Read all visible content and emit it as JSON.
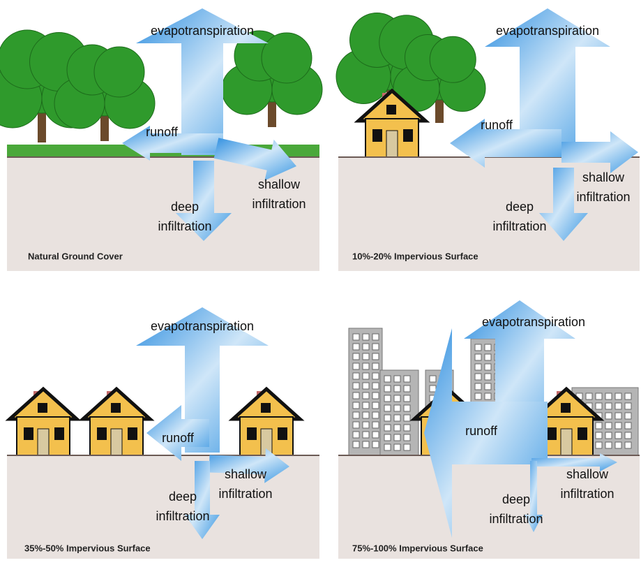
{
  "panels": [
    {
      "caption": "Natural Ground Cover",
      "evapotranspiration": "evapotranspiration",
      "runoff": "runoff",
      "shallow_infiltration": [
        "shallow",
        "infiltration"
      ],
      "deep_infiltration": [
        "deep",
        "infiltration"
      ]
    },
    {
      "caption": "10%-20% Impervious Surface",
      "evapotranspiration": "evapotranspiration",
      "runoff": "runoff",
      "shallow_infiltration": [
        "shallow",
        "infiltration"
      ],
      "deep_infiltration": [
        "deep",
        "infiltration"
      ]
    },
    {
      "caption": "35%-50% Impervious Surface",
      "evapotranspiration": "evapotranspiration",
      "runoff": "runoff",
      "shallow_infiltration": [
        "shallow",
        "infiltration"
      ],
      "deep_infiltration": [
        "deep",
        "infiltration"
      ]
    },
    {
      "caption": "75%-100% Impervious Surface",
      "evapotranspiration": "evapotranspiration",
      "runoff": "runoff",
      "shallow_infiltration": [
        "shallow",
        "infiltration"
      ],
      "deep_infiltration": [
        "deep",
        "infiltration"
      ]
    }
  ]
}
